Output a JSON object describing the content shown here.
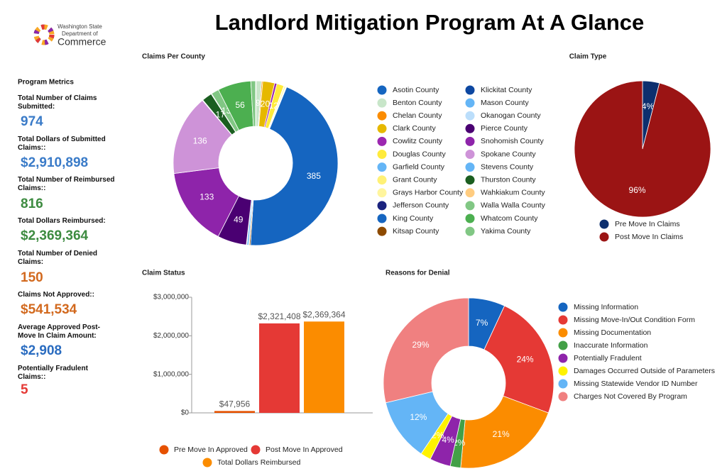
{
  "header": {
    "title": "Landlord Mitigation Program At A Glance",
    "logo": [
      "Washington State",
      "Department of",
      "Commerce"
    ]
  },
  "metrics": {
    "title": "Program Metrics",
    "items": [
      {
        "label": "Total Number of Claims Submitted:",
        "value": "974",
        "color": "#3a7bc8"
      },
      {
        "label": "Total Dollars of Submitted Claims::",
        "value": "$2,910,898",
        "color": "#3a7bc8"
      },
      {
        "label": "Total Number of Reimbursed Claims::",
        "value": "816",
        "color": "#3d8b40"
      },
      {
        "label": "Total Dollars Reimbursed:",
        "value": "$2,369,364",
        "color": "#3d8b40"
      },
      {
        "label": "Total Number of Denied Claims:",
        "value": "150",
        "color": "#d2691e"
      },
      {
        "label": "Claims Not Approved::",
        "value": "$541,534",
        "color": "#d2691e"
      },
      {
        "label": "Average Approved Post-Move In Claim Amount:",
        "value": "$2,908",
        "color": "#2a6cc0"
      },
      {
        "label": "Potentially Fradulent Claims::",
        "value": "5",
        "color": "#e53935"
      }
    ]
  },
  "chart_data": [
    {
      "type": "donut",
      "title": "Claims Per County",
      "categories": [
        "Asotin County",
        "Benton County",
        "Chelan County",
        "Clark County",
        "Cowlitz County",
        "Douglas County",
        "Garfield County",
        "Grant County",
        "Grays Harbor County",
        "Jefferson County",
        "King County",
        "Kitsap County",
        "Klickitat County",
        "Mason County",
        "Okanogan County",
        "Pierce County",
        "Snohomish County",
        "Spokane County",
        "Stevens County",
        "Thurston County",
        "Wahkiakum County",
        "Walla Walla County",
        "Whatcom County",
        "Yakima County"
      ],
      "colors": [
        "#1565c0",
        "#c8e6c9",
        "#fb8c00",
        "#e6b800",
        "#9c27b0",
        "#ffeb3b",
        "#64b5f6",
        "#fff176",
        "#fff59d",
        "#1a237e",
        "#1565c0",
        "#8d4a00",
        "#0d47a1",
        "#64b5f6",
        "#bbdefb",
        "#4a0072",
        "#8e24aa",
        "#ce93d8",
        "#64b5f6",
        "#1b5e20",
        "#ffcc80",
        "#81c784",
        "#4caf50",
        "#81c784"
      ],
      "values": [
        1,
        9,
        2,
        20,
        4,
        12,
        1,
        2,
        1,
        1,
        385,
        2,
        1,
        3,
        1,
        49,
        133,
        136,
        1,
        17,
        1,
        13,
        56,
        8
      ]
    },
    {
      "type": "pie",
      "title": "Claim Type",
      "categories": [
        "Pre Move In Claims",
        "Post Move In Claims"
      ],
      "colors": [
        "#0d2f6e",
        "#9b1414"
      ],
      "values": [
        4,
        96
      ],
      "value_labels": [
        "4%",
        "96%"
      ]
    },
    {
      "type": "bar",
      "title": "Claim Status",
      "series": [
        {
          "name": "Pre Move In Approved",
          "color": "#e65100",
          "values": [
            47956
          ],
          "value_labels": [
            "$47,956"
          ]
        },
        {
          "name": "Post Move In Approved",
          "color": "#e53935",
          "values": [
            2321408
          ],
          "value_labels": [
            "$2,321,408"
          ]
        },
        {
          "name": "Total Dollars Reimbursed",
          "color": "#fb8c00",
          "values": [
            2369364
          ],
          "value_labels": [
            "$2,369,364"
          ]
        }
      ],
      "ylim": [
        0,
        3000000
      ],
      "yticks": [
        {
          "value": 0,
          "label": "$0"
        },
        {
          "value": 1000000,
          "label": "$1,000,000"
        },
        {
          "value": 2000000,
          "label": "$2,000,000"
        },
        {
          "value": 3000000,
          "label": "$3,000,000"
        }
      ]
    },
    {
      "type": "donut",
      "title": "Reasons for Denial",
      "categories": [
        "Missing Information",
        "Missing Move-In/Out Condition Form",
        "Missing Documentation",
        "Inaccurate Information",
        "Potentially Fradulent",
        "Damages Occurred Outside of Parameters",
        "Missing Statewide Vendor ID Number",
        "Charges Not Covered By Program"
      ],
      "colors": [
        "#1565c0",
        "#e53935",
        "#fb8c00",
        "#43a047",
        "#8e24aa",
        "#fff200",
        "#64b5f6",
        "#f08080"
      ],
      "values": [
        7,
        24,
        21,
        2,
        4,
        2,
        12,
        29
      ],
      "value_labels": [
        "7%",
        "24%",
        "21%",
        "2%",
        "4%",
        "2%",
        "12%",
        "29%"
      ]
    }
  ]
}
